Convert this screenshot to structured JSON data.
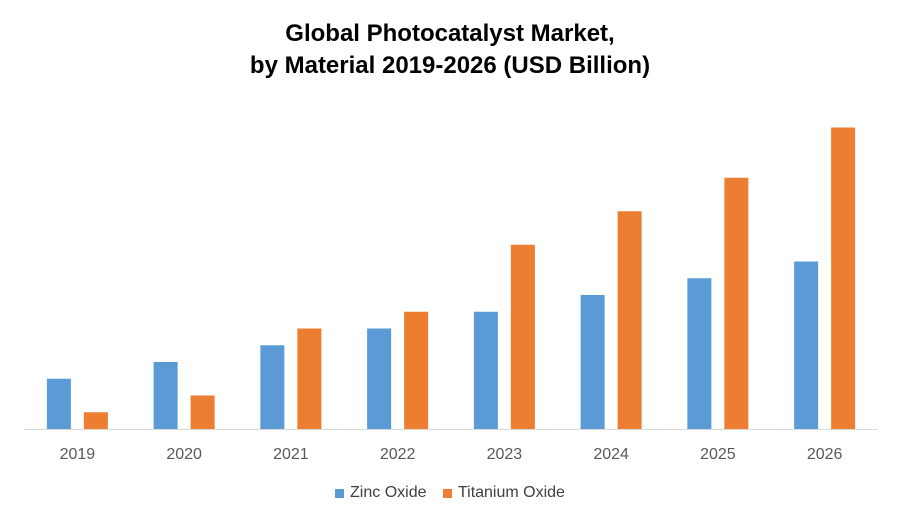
{
  "title": {
    "line1": "Global Photocatalyst Market,",
    "line2": "by Material 2019-2026 (USD Billion)"
  },
  "chart_data": {
    "type": "bar",
    "categories": [
      "2019",
      "2020",
      "2021",
      "2022",
      "2023",
      "2024",
      "2025",
      "2026"
    ],
    "series": [
      {
        "name": "Zinc Oxide",
        "color": "#5B9BD5",
        "values": [
          1.5,
          2.0,
          2.5,
          3.0,
          3.5,
          4.0,
          4.5,
          5.0
        ]
      },
      {
        "name": "Titanium Oxide",
        "color": "#ED7D31",
        "values": [
          0.5,
          1.0,
          3.0,
          3.5,
          5.5,
          6.5,
          7.5,
          9.0
        ]
      }
    ],
    "ylim": [
      0,
      10
    ],
    "y_axis_visible": false,
    "grid": false,
    "legend_position": "bottom"
  }
}
